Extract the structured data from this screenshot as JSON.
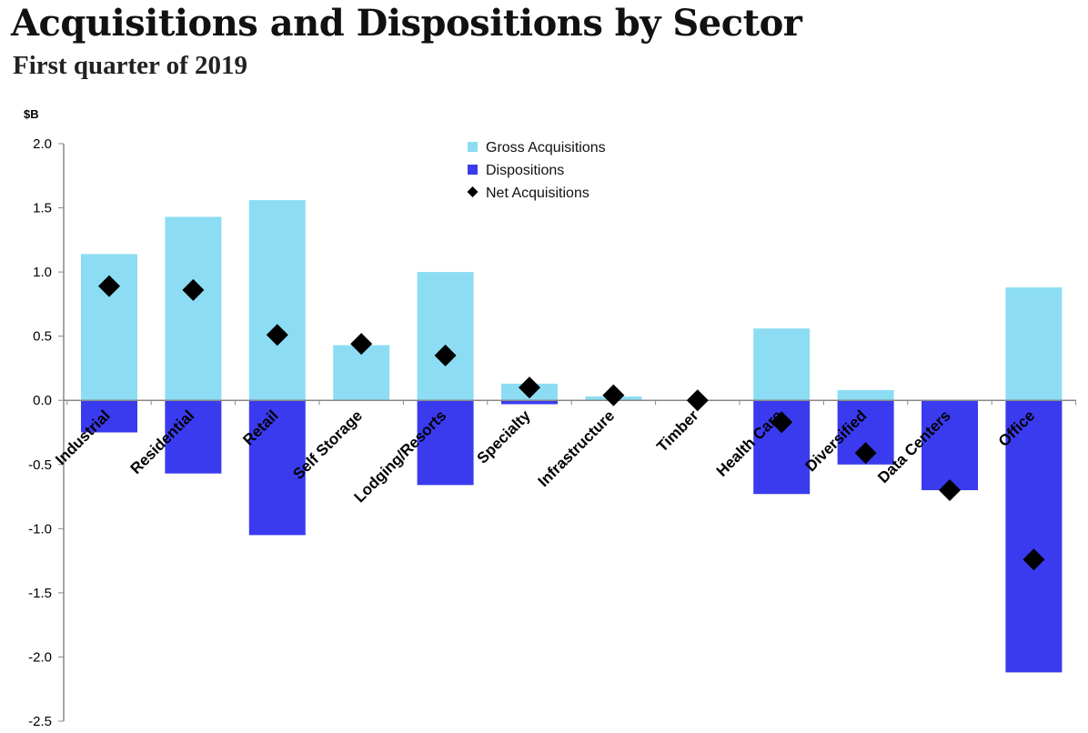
{
  "title": "Acquisitions and Dispositions by Sector",
  "subtitle": "First quarter of 2019",
  "chart_data": {
    "type": "bar",
    "title": "Acquisitions and Dispositions by Sector",
    "subtitle": "First quarter of 2019",
    "ylabel": "$B",
    "xlabel": "",
    "ylim": [
      -2.5,
      2.0
    ],
    "yticks": [
      2.0,
      1.5,
      1.0,
      0.5,
      0.0,
      -0.5,
      -1.0,
      -1.5,
      -2.0,
      -2.5
    ],
    "ytick_labels": [
      "2.0",
      "1.5",
      "1.0",
      "0.5",
      "0.0",
      "-0.5",
      "-1.0",
      "-1.5",
      "-2.0",
      "-2.5"
    ],
    "categories": [
      "Industrial",
      "Residential",
      "Retail",
      "Self Storage",
      "Lodging/Resorts",
      "Specialty",
      "Infrastructure",
      "Timber",
      "Health Care",
      "Diversified",
      "Data Centers",
      "Office"
    ],
    "series": [
      {
        "name": "Gross Acquisitions",
        "kind": "bar",
        "color": "#8CDDF3",
        "values": [
          1.14,
          1.43,
          1.56,
          0.43,
          1.0,
          0.13,
          0.03,
          0.0,
          0.56,
          0.08,
          0.0,
          0.88
        ]
      },
      {
        "name": "Dispositions",
        "kind": "bar",
        "color": "#3A3BEF",
        "values": [
          -0.25,
          -0.57,
          -1.05,
          0.0,
          -0.66,
          -0.03,
          0.0,
          0.0,
          -0.73,
          -0.5,
          -0.7,
          -2.12
        ]
      },
      {
        "name": "Net Acquisitions",
        "kind": "marker",
        "marker": "diamond",
        "color": "#000000",
        "values": [
          0.89,
          0.86,
          0.51,
          0.44,
          0.35,
          0.1,
          0.04,
          0.0,
          -0.17,
          -0.41,
          -0.7,
          -1.24
        ]
      }
    ],
    "legend": {
      "position": "top-center",
      "entries": [
        "Gross Acquisitions",
        "Dispositions",
        "Net Acquisitions"
      ]
    },
    "grid": false
  }
}
